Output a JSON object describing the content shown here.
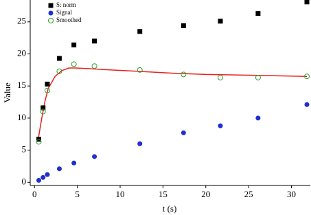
{
  "chart_data": {
    "type": "scatter",
    "x_label": "t (s)",
    "y_label": "Value",
    "xlim": [
      -0.5,
      32.2
    ],
    "ylim": [
      -0.5,
      28.4
    ],
    "xticks": [
      0,
      5,
      10,
      15,
      20,
      25,
      30
    ],
    "yticks": [
      0,
      5,
      10,
      15,
      20,
      25
    ],
    "legend": "upper left",
    "series": [
      {
        "name": "S: norm",
        "color": "#000000",
        "marker": "square",
        "x": [
          0.5,
          1,
          1.5,
          2.9,
          4.6,
          7,
          12.3,
          17.4,
          21.7,
          26.1,
          31.8
        ],
        "values": [
          6.7,
          11.6,
          15.3,
          19.3,
          21.4,
          22.0,
          23.5,
          24.4,
          25.1,
          26.3,
          28.1
        ]
      },
      {
        "name": "Signal",
        "color": "#1f2fd0",
        "marker": "circle",
        "x": [
          0.5,
          1,
          1.5,
          2.9,
          4.6,
          7,
          12.3,
          17.4,
          21.7,
          26.1,
          31.8
        ],
        "values": [
          0.3,
          0.75,
          1.2,
          2.1,
          3.0,
          4.0,
          6.0,
          7.7,
          8.8,
          10.0,
          12.1
        ]
      },
      {
        "name": "Smoothed",
        "color": "#2ca02c",
        "marker": "open-circle",
        "x": [
          0.5,
          1,
          1.5,
          2.9,
          4.6,
          7,
          12.3,
          17.4,
          21.7,
          26.1,
          31.8
        ],
        "values": [
          6.3,
          11.0,
          14.3,
          17.3,
          18.4,
          18.1,
          17.5,
          16.8,
          16.3,
          16.3,
          16.5
        ]
      }
    ],
    "fit": {
      "color": "#e8211e",
      "x": [
        0.4,
        0.8,
        1.2,
        1.6,
        2.4,
        3.2,
        4.0,
        4.8,
        6.4,
        8.8,
        12.0,
        16.0,
        20.0,
        24.0,
        28.0,
        31.8
      ],
      "values": [
        6.4,
        9.6,
        12.5,
        14.6,
        16.5,
        17.4,
        17.8,
        17.8,
        17.7,
        17.5,
        17.3,
        17.0,
        16.8,
        16.7,
        16.6,
        16.5
      ]
    }
  }
}
